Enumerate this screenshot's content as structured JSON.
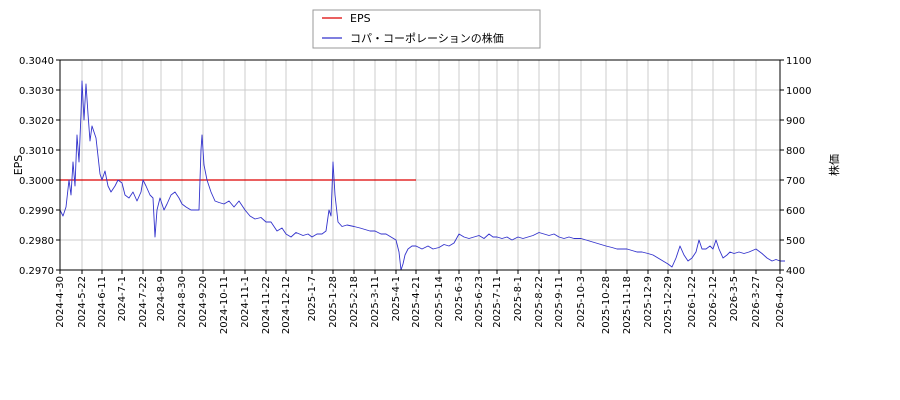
{
  "chart_data": {
    "type": "line",
    "grid": true,
    "legend_placement": "top-center",
    "x_ticks": [
      "2024-4-30",
      "2024-5-22",
      "2024-6-11",
      "2024-7-1",
      "2024-7-22",
      "2024-8-9",
      "2024-8-30",
      "2024-9-20",
      "2024-10-11",
      "2024-11-1",
      "2024-11-22",
      "2024-12-12",
      "2025-1-7",
      "2025-1-28",
      "2025-2-18",
      "2025-3-11",
      "2025-4-1",
      "2025-4-21",
      "2025-5-14",
      "2025-6-3",
      "2025-6-23",
      "2025-7-11",
      "2025-8-1",
      "2025-8-22",
      "2025-9-11",
      "2025-10-3",
      "2025-10-28",
      "2025-11-18",
      "2025-12-9",
      "2025-12-29",
      "2026-1-22",
      "2026-2-12",
      "2026-3-5",
      "2026-3-27",
      "2026-4-20"
    ],
    "y_left": {
      "label": "EPS",
      "ylim": [
        0.297,
        0.304
      ],
      "ticks": [
        "0.2970",
        "0.2980",
        "0.2990",
        "0.3000",
        "0.3010",
        "0.3020",
        "0.3030",
        "0.3040"
      ]
    },
    "y_right": {
      "label": "株価",
      "ylim": [
        400,
        1100
      ],
      "ticks": [
        "400",
        "500",
        "600",
        "700",
        "800",
        "900",
        "1000",
        "1100"
      ]
    },
    "series": [
      {
        "name": "EPS",
        "color": "#dd0000",
        "axis": "left",
        "points": [
          [
            "2024-4-30",
            0.3
          ],
          [
            "2025-4-21",
            0.3
          ]
        ]
      },
      {
        "name": "コパ・コーポレーションの株価",
        "color": "#3333cc",
        "axis": "right",
        "points": [
          [
            "2024-4-30",
            600
          ],
          [
            "2024-5-3",
            580
          ],
          [
            "2024-5-6",
            610
          ],
          [
            "2024-5-9",
            700
          ],
          [
            "2024-5-11",
            650
          ],
          [
            "2024-5-13",
            760
          ],
          [
            "2024-5-15",
            680
          ],
          [
            "2024-5-17",
            850
          ],
          [
            "2024-5-19",
            760
          ],
          [
            "2024-5-21",
            920
          ],
          [
            "2024-5-22",
            1030
          ],
          [
            "2024-5-24",
            900
          ],
          [
            "2024-5-26",
            1020
          ],
          [
            "2024-5-28",
            920
          ],
          [
            "2024-5-30",
            830
          ],
          [
            "2024-6-1",
            880
          ],
          [
            "2024-6-3",
            860
          ],
          [
            "2024-6-5",
            840
          ],
          [
            "2024-6-7",
            780
          ],
          [
            "2024-6-9",
            720
          ],
          [
            "2024-6-11",
            700
          ],
          [
            "2024-6-14",
            730
          ],
          [
            "2024-6-17",
            680
          ],
          [
            "2024-6-20",
            660
          ],
          [
            "2024-6-24",
            680
          ],
          [
            "2024-6-27",
            700
          ],
          [
            "2024-7-1",
            690
          ],
          [
            "2024-7-4",
            650
          ],
          [
            "2024-7-8",
            640
          ],
          [
            "2024-7-12",
            660
          ],
          [
            "2024-7-16",
            630
          ],
          [
            "2024-7-20",
            660
          ],
          [
            "2024-7-22",
            700
          ],
          [
            "2024-7-25",
            680
          ],
          [
            "2024-7-29",
            650
          ],
          [
            "2024-8-1",
            640
          ],
          [
            "2024-8-3",
            510
          ],
          [
            "2024-8-5",
            600
          ],
          [
            "2024-8-8",
            640
          ],
          [
            "2024-8-12",
            600
          ],
          [
            "2024-8-15",
            620
          ],
          [
            "2024-8-19",
            650
          ],
          [
            "2024-8-23",
            660
          ],
          [
            "2024-8-27",
            640
          ],
          [
            "2024-8-30",
            620
          ],
          [
            "2024-9-3",
            610
          ],
          [
            "2024-9-8",
            600
          ],
          [
            "2024-9-12",
            600
          ],
          [
            "2024-9-16",
            600
          ],
          [
            "2024-9-18",
            800
          ],
          [
            "2024-9-19",
            850
          ],
          [
            "2024-9-21",
            750
          ],
          [
            "2024-9-24",
            700
          ],
          [
            "2024-9-28",
            660
          ],
          [
            "2024-10-2",
            630
          ],
          [
            "2024-10-6",
            625
          ],
          [
            "2024-10-11",
            620
          ],
          [
            "2024-10-16",
            630
          ],
          [
            "2024-10-21",
            610
          ],
          [
            "2024-10-26",
            630
          ],
          [
            "2024-11-1",
            600
          ],
          [
            "2024-11-6",
            580
          ],
          [
            "2024-11-11",
            570
          ],
          [
            "2024-11-17",
            575
          ],
          [
            "2024-11-22",
            560
          ],
          [
            "2024-11-27",
            560
          ],
          [
            "2024-12-3",
            530
          ],
          [
            "2024-12-8",
            540
          ],
          [
            "2024-12-12",
            520
          ],
          [
            "2024-12-17",
            510
          ],
          [
            "2024-12-22",
            525
          ],
          [
            "2024-12-29",
            515
          ],
          [
            "2025-1-3",
            520
          ],
          [
            "2025-1-7",
            510
          ],
          [
            "2025-1-12",
            520
          ],
          [
            "2025-1-17",
            520
          ],
          [
            "2025-1-21",
            530
          ],
          [
            "2025-1-24",
            600
          ],
          [
            "2025-1-26",
            580
          ],
          [
            "2025-1-28",
            760
          ],
          [
            "2025-1-30",
            650
          ],
          [
            "2025-2-2",
            560
          ],
          [
            "2025-2-6",
            545
          ],
          [
            "2025-2-11",
            550
          ],
          [
            "2025-2-18",
            545
          ],
          [
            "2025-2-24",
            540
          ],
          [
            "2025-3-1",
            535
          ],
          [
            "2025-3-6",
            530
          ],
          [
            "2025-3-11",
            530
          ],
          [
            "2025-3-17",
            520
          ],
          [
            "2025-3-22",
            520
          ],
          [
            "2025-3-27",
            510
          ],
          [
            "2025-4-1",
            500
          ],
          [
            "2025-4-4",
            460
          ],
          [
            "2025-4-6",
            400
          ],
          [
            "2025-4-8",
            420
          ],
          [
            "2025-4-10",
            450
          ],
          [
            "2025-4-13",
            470
          ],
          [
            "2025-4-17",
            480
          ],
          [
            "2025-4-21",
            480
          ],
          [
            "2025-4-27",
            470
          ],
          [
            "2025-5-3",
            480
          ],
          [
            "2025-5-8",
            470
          ],
          [
            "2025-5-14",
            475
          ],
          [
            "2025-5-19",
            485
          ],
          [
            "2025-5-24",
            480
          ],
          [
            "2025-5-29",
            490
          ],
          [
            "2025-6-3",
            520
          ],
          [
            "2025-6-8",
            510
          ],
          [
            "2025-6-13",
            505
          ],
          [
            "2025-6-18",
            510
          ],
          [
            "2025-6-23",
            515
          ],
          [
            "2025-6-28",
            505
          ],
          [
            "2025-7-3",
            520
          ],
          [
            "2025-7-7",
            510
          ],
          [
            "2025-7-11",
            510
          ],
          [
            "2025-7-16",
            505
          ],
          [
            "2025-7-21",
            510
          ],
          [
            "2025-7-26",
            500
          ],
          [
            "2025-8-1",
            510
          ],
          [
            "2025-8-6",
            505
          ],
          [
            "2025-8-11",
            510
          ],
          [
            "2025-8-16",
            515
          ],
          [
            "2025-8-22",
            525
          ],
          [
            "2025-8-27",
            520
          ],
          [
            "2025-9-1",
            515
          ],
          [
            "2025-9-6",
            520
          ],
          [
            "2025-9-11",
            510
          ],
          [
            "2025-9-16",
            505
          ],
          [
            "2025-9-21",
            510
          ],
          [
            "2025-9-26",
            505
          ],
          [
            "2025-10-3",
            505
          ],
          [
            "2025-10-8",
            500
          ],
          [
            "2025-10-13",
            495
          ],
          [
            "2025-10-18",
            490
          ],
          [
            "2025-10-23",
            485
          ],
          [
            "2025-10-28",
            480
          ],
          [
            "2025-11-3",
            475
          ],
          [
            "2025-11-8",
            470
          ],
          [
            "2025-11-13",
            470
          ],
          [
            "2025-11-18",
            470
          ],
          [
            "2025-11-23",
            465
          ],
          [
            "2025-11-28",
            460
          ],
          [
            "2025-12-3",
            460
          ],
          [
            "2025-12-9",
            455
          ],
          [
            "2025-12-14",
            450
          ],
          [
            "2025-12-19",
            440
          ],
          [
            "2025-12-24",
            430
          ],
          [
            "2025-12-29",
            420
          ],
          [
            "2026-1-2",
            410
          ],
          [
            "2026-1-6",
            440
          ],
          [
            "2026-1-10",
            480
          ],
          [
            "2026-1-14",
            450
          ],
          [
            "2026-1-18",
            430
          ],
          [
            "2026-1-22",
            440
          ],
          [
            "2026-1-26",
            460
          ],
          [
            "2026-1-29",
            500
          ],
          [
            "2026-2-1",
            470
          ],
          [
            "2026-2-5",
            470
          ],
          [
            "2026-2-9",
            480
          ],
          [
            "2026-2-12",
            470
          ],
          [
            "2026-2-15",
            500
          ],
          [
            "2026-2-18",
            470
          ],
          [
            "2026-2-22",
            440
          ],
          [
            "2026-2-26",
            450
          ],
          [
            "2026-3-1",
            460
          ],
          [
            "2026-3-5",
            455
          ],
          [
            "2026-3-10",
            460
          ],
          [
            "2026-3-15",
            455
          ],
          [
            "2026-3-20",
            460
          ],
          [
            "2026-3-27",
            470
          ],
          [
            "2026-4-2",
            455
          ],
          [
            "2026-4-7",
            440
          ],
          [
            "2026-4-12",
            430
          ],
          [
            "2026-4-16",
            435
          ],
          [
            "2026-4-20",
            430
          ],
          [
            "2026-4-25",
            430
          ]
        ]
      }
    ]
  }
}
